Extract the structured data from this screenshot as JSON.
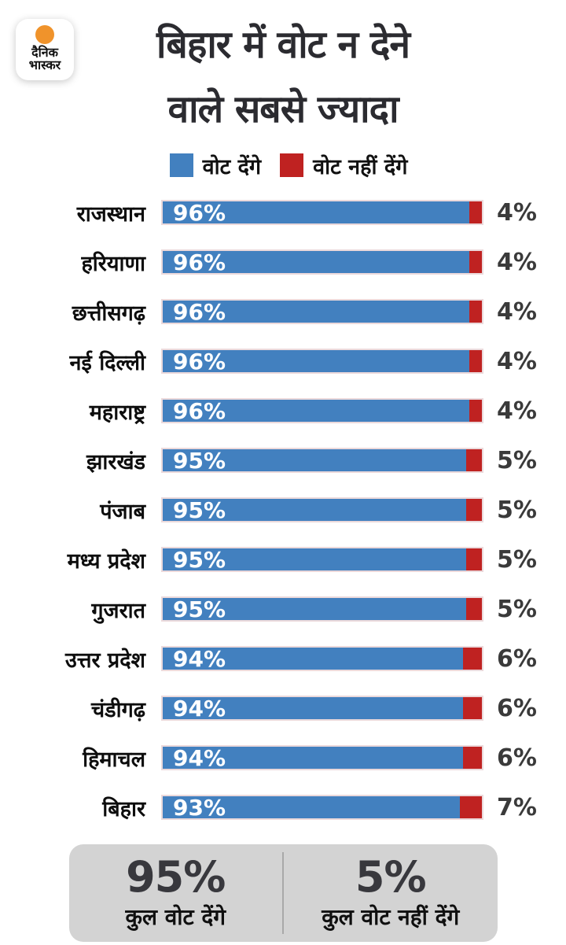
{
  "logo": {
    "line1": "दैनिक",
    "line2": "भास्कर"
  },
  "title": {
    "line1": "बिहार में वोट न देने",
    "line2": "वाले सबसे ज्यादा"
  },
  "legend": {
    "will_vote": "वोट देंगे",
    "wont_vote": "वोट नहीं देंगे"
  },
  "colors": {
    "will_vote_blue": "#4280BF",
    "wont_vote_red": "#BF2221",
    "logo_orange": "#F0932B",
    "title_dark": "#2B2B30",
    "summary_bg": "#D3D3D3"
  },
  "chart_data": {
    "type": "bar",
    "orientation": "horizontal",
    "stacked": true,
    "value_suffix": "%",
    "categories": [
      "राजस्थान",
      "हरियाणा",
      "छत्तीसगढ़",
      "नई दिल्ली",
      "महाराष्ट्र",
      "झारखंड",
      "पंजाब",
      "मध्य प्रदेश",
      "गुजरात",
      "उत्तर प्रदेश",
      "चंडीगढ़",
      "हिमाचल",
      "बिहार"
    ],
    "series": [
      {
        "name": "वोट देंगे",
        "color": "#4280BF",
        "values": [
          96,
          96,
          96,
          96,
          96,
          95,
          95,
          95,
          95,
          94,
          94,
          94,
          93
        ]
      },
      {
        "name": "वोट नहीं देंगे",
        "color": "#BF2221",
        "values": [
          4,
          4,
          4,
          4,
          4,
          5,
          5,
          5,
          5,
          6,
          6,
          6,
          7
        ]
      }
    ],
    "xlim": [
      0,
      100
    ],
    "legend_position": "top",
    "grid": false
  },
  "summary": {
    "total_will_vote": "95%",
    "total_will_vote_label": "कुल वोट देंगे",
    "total_wont_vote": "5%",
    "total_wont_vote_label": "कुल वोट नहीं देंगे"
  }
}
